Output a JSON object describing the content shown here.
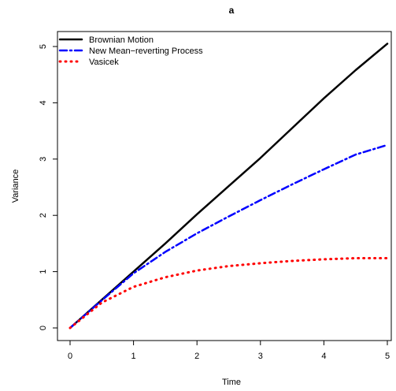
{
  "chart_data": {
    "type": "line",
    "title": "a",
    "xlabel": "Time",
    "ylabel": "Variance",
    "xlim": [
      0,
      5
    ],
    "ylim": [
      0,
      5
    ],
    "xticks": [
      "0",
      "1",
      "2",
      "3",
      "4",
      "5"
    ],
    "yticks": [
      "0",
      "1",
      "2",
      "3",
      "4",
      "5"
    ],
    "grid": false,
    "legend_position": "top-left",
    "series": [
      {
        "name": "Brownian Motion",
        "color": "#000000",
        "style": "solid",
        "x": [
          0,
          0.5,
          1,
          1.5,
          2,
          2.5,
          3,
          3.5,
          4,
          4.5,
          5
        ],
        "y": [
          0,
          0.5,
          1.0,
          1.5,
          2.02,
          2.52,
          3.02,
          3.55,
          4.08,
          4.58,
          5.05
        ]
      },
      {
        "name": "New Mean−reverting Process",
        "color": "#0000ff",
        "style": "dashdot",
        "x": [
          0,
          0.5,
          1,
          1.5,
          2,
          2.5,
          3,
          3.5,
          4,
          4.5,
          5
        ],
        "y": [
          0,
          0.49,
          0.97,
          1.35,
          1.68,
          1.98,
          2.27,
          2.55,
          2.82,
          3.08,
          3.25
        ]
      },
      {
        "name": "Vasicek",
        "color": "#ff0000",
        "style": "dotted",
        "x": [
          0,
          0.5,
          1,
          1.5,
          2,
          2.5,
          3,
          3.5,
          4,
          4.5,
          5
        ],
        "y": [
          0,
          0.45,
          0.73,
          0.9,
          1.02,
          1.1,
          1.15,
          1.19,
          1.22,
          1.24,
          1.24
        ]
      }
    ]
  }
}
